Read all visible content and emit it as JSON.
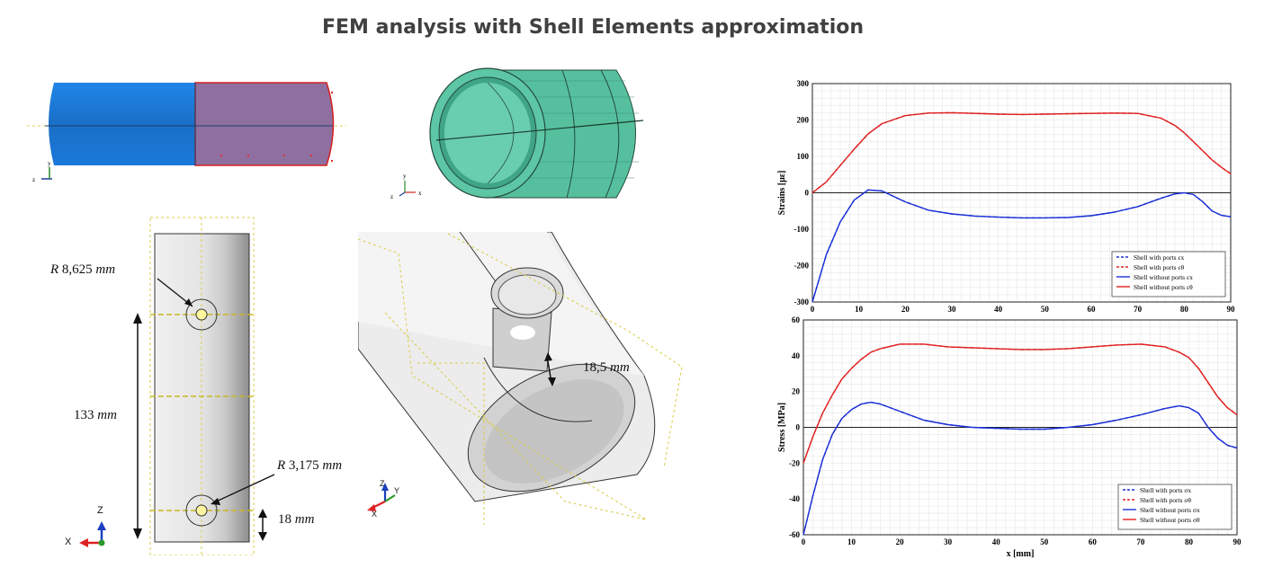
{
  "title": "FEM analysis with Shell Elements approximation",
  "colors": {
    "shell_blue": "#1a76d2",
    "shell_pink": "#8a6ea2",
    "mesh_green": "#4fba97",
    "curve_red": "#e02020",
    "curve_blue": "#1a2fd6"
  },
  "views": {
    "top_left": {
      "axis_z": "z",
      "axis_y": "y"
    },
    "top_mid": {
      "axis_y": "y",
      "axis_z": "z",
      "axis_x": "x"
    },
    "bottom_left": {
      "r_large_italic": "R",
      "r_large_value": "8,625",
      "r_large_unit": "mm",
      "length_value": "133",
      "length_unit": "mm",
      "r_small_italic": "R",
      "r_small_value": "3,175",
      "r_small_unit": "mm",
      "offset_value": "18",
      "offset_unit": "mm",
      "axis_z": "Z",
      "axis_x": "X"
    },
    "bottom_mid": {
      "port_value": "18,5",
      "port_unit": "mm",
      "axis_z": "Z",
      "axis_y": "Y",
      "axis_x": "X"
    }
  },
  "chart_data": [
    {
      "type": "line",
      "ylabel": "Strains [με]",
      "xlim": [
        0,
        90
      ],
      "ylim": [
        -300,
        300
      ],
      "xticks": [
        0,
        10,
        20,
        30,
        40,
        50,
        60,
        70,
        80,
        90
      ],
      "yticks": [
        -300,
        -200,
        -100,
        0,
        100,
        200,
        300
      ],
      "grid": true,
      "legend_position": "bottom-right",
      "x": [
        0,
        3,
        6,
        9,
        12,
        15,
        20,
        25,
        30,
        35,
        40,
        45,
        50,
        55,
        60,
        65,
        70,
        75,
        78,
        80,
        82,
        84,
        86,
        88,
        90
      ],
      "series": [
        {
          "name": "Shell with ports εx",
          "color": "#1a2fd6",
          "dash": true,
          "values": [
            -300,
            -170,
            -80,
            -20,
            8,
            5,
            -25,
            -48,
            -58,
            -64,
            -67,
            -69,
            -69,
            -68,
            -63,
            -53,
            -38,
            -15,
            -3,
            0,
            -5,
            -25,
            -50,
            -62,
            -66
          ]
        },
        {
          "name": "Shell with ports εθ",
          "color": "#e02020",
          "dash": true,
          "values": [
            0,
            30,
            75,
            120,
            162,
            190,
            212,
            219,
            220,
            218,
            216,
            215,
            216,
            217,
            218,
            219,
            218,
            205,
            185,
            165,
            140,
            115,
            90,
            70,
            52
          ]
        },
        {
          "name": "Shell without ports εx",
          "color": "#1a2fd6",
          "dash": false,
          "values": [
            -300,
            -170,
            -80,
            -20,
            8,
            5,
            -25,
            -48,
            -58,
            -64,
            -67,
            -69,
            -69,
            -68,
            -63,
            -53,
            -38,
            -15,
            -3,
            0,
            -5,
            -25,
            -50,
            -62,
            -66
          ]
        },
        {
          "name": "Shell without ports εθ",
          "color": "#e02020",
          "dash": false,
          "values": [
            0,
            30,
            75,
            120,
            162,
            190,
            212,
            219,
            220,
            218,
            216,
            215,
            216,
            217,
            218,
            219,
            218,
            205,
            185,
            165,
            140,
            115,
            90,
            70,
            52
          ]
        }
      ]
    },
    {
      "type": "line",
      "ylabel": "Stress [MPa]",
      "xlabel": "x [mm]",
      "xlim": [
        0,
        90
      ],
      "ylim": [
        -60,
        60
      ],
      "xticks": [
        0,
        10,
        20,
        30,
        40,
        50,
        60,
        70,
        80,
        90
      ],
      "yticks": [
        -60,
        -40,
        -20,
        0,
        20,
        40,
        60
      ],
      "grid": true,
      "legend_position": "bottom-right",
      "x": [
        0,
        2,
        4,
        6,
        8,
        10,
        12,
        14,
        16,
        20,
        25,
        30,
        35,
        40,
        45,
        50,
        55,
        60,
        65,
        70,
        75,
        78,
        80,
        82,
        84,
        86,
        88,
        90
      ],
      "series": [
        {
          "name": "Shell with ports σx",
          "color": "#1a2fd6",
          "dash": true,
          "values": [
            -60,
            -38,
            -18,
            -4,
            5,
            10,
            13,
            14,
            13,
            9,
            4,
            1.5,
            0,
            -0.5,
            -1,
            -1,
            0,
            1.5,
            4,
            7,
            10.5,
            12,
            11,
            8,
            0,
            -6,
            -10,
            -11.5
          ]
        },
        {
          "name": "Shell with ports σθ",
          "color": "#e02020",
          "dash": true,
          "values": [
            -20,
            -5,
            8,
            18,
            27,
            33,
            38,
            42,
            44,
            46.5,
            46.5,
            45,
            44.5,
            44,
            43.5,
            43.5,
            44,
            45,
            46,
            46.5,
            45,
            42,
            39,
            33,
            25,
            17,
            11,
            7
          ]
        },
        {
          "name": "Shell without ports σx",
          "color": "#1a2fd6",
          "dash": false,
          "values": [
            -60,
            -38,
            -18,
            -4,
            5,
            10,
            13,
            14,
            13,
            9,
            4,
            1.5,
            0,
            -0.5,
            -1,
            -1,
            0,
            1.5,
            4,
            7,
            10.5,
            12,
            11,
            8,
            0,
            -6,
            -10,
            -11.5
          ]
        },
        {
          "name": "Shell without ports σθ",
          "color": "#e02020",
          "dash": false,
          "values": [
            -20,
            -5,
            8,
            18,
            27,
            33,
            38,
            42,
            44,
            46.5,
            46.5,
            45,
            44.5,
            44,
            43.5,
            43.5,
            44,
            45,
            46,
            46.5,
            45,
            42,
            39,
            33,
            25,
            17,
            11,
            7
          ]
        }
      ]
    }
  ]
}
